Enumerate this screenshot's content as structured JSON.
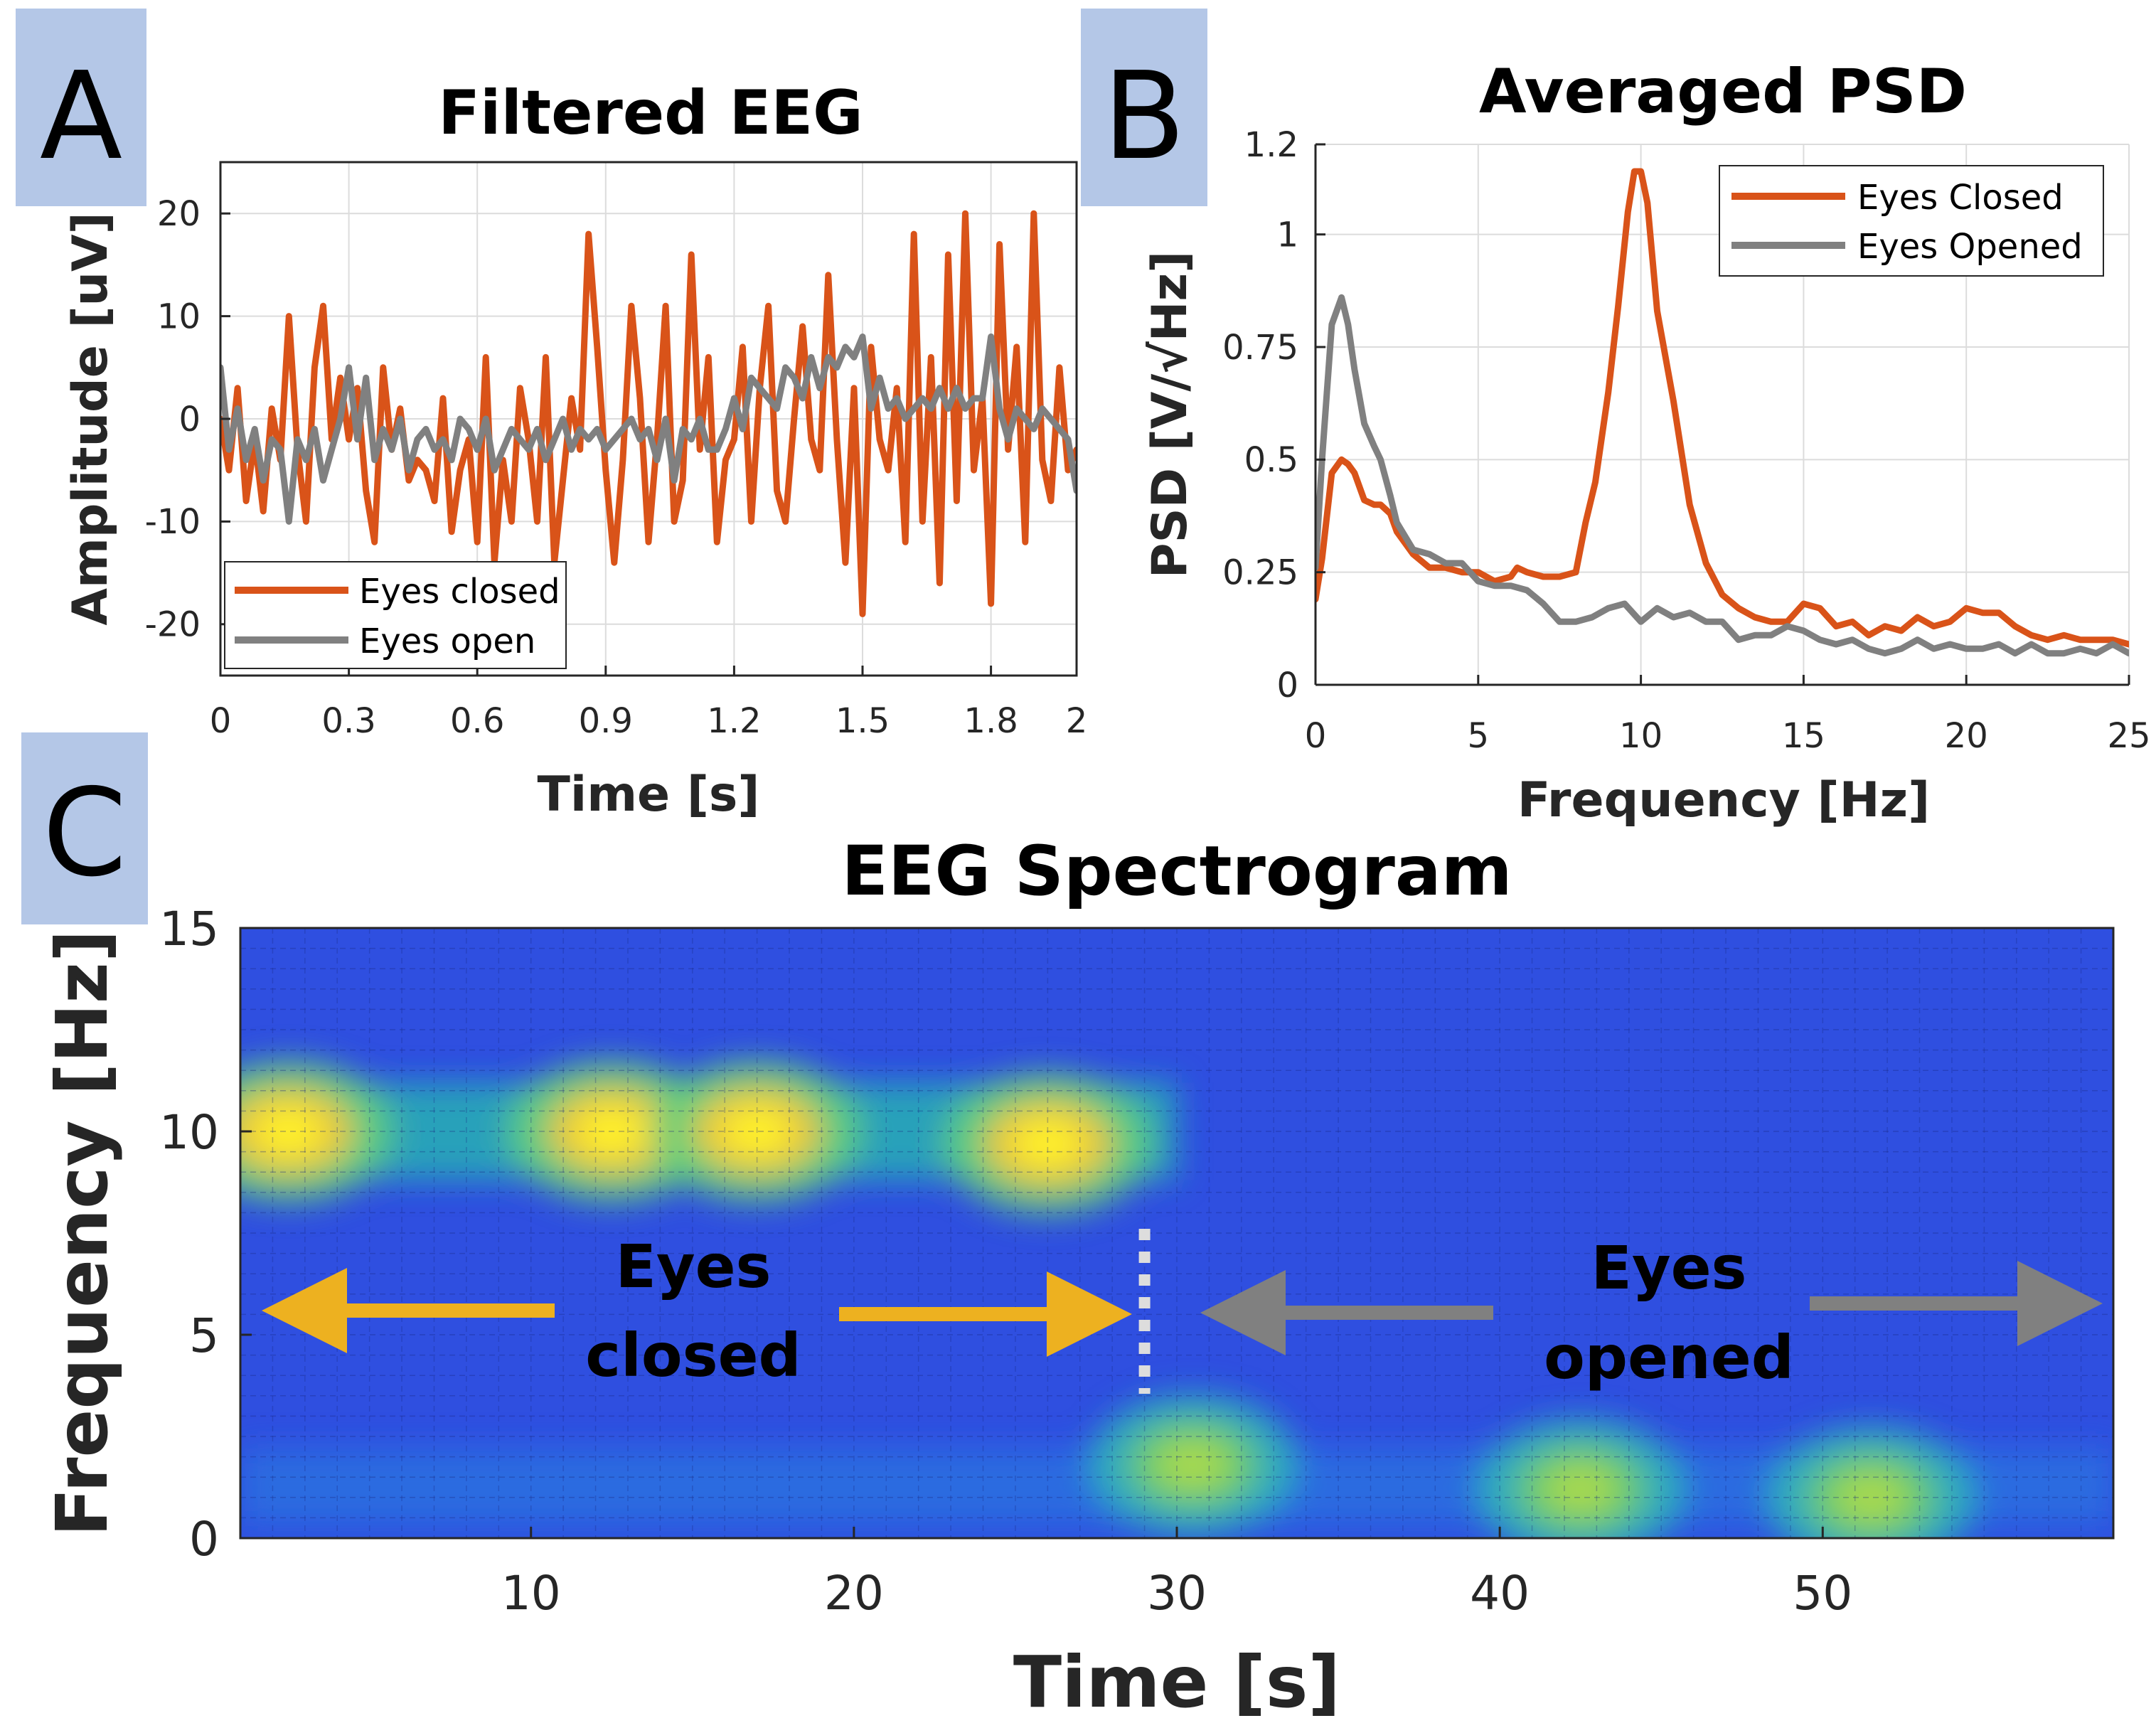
{
  "chart_data": [
    {
      "panel": "A",
      "type": "line",
      "title": "Filtered EEG",
      "xlabel": "Time [s]",
      "ylabel": "Amplitude [uV]",
      "xlim": [
        0,
        2
      ],
      "ylim": [
        -25,
        25
      ],
      "xticks": [
        0,
        0.3,
        0.6,
        0.9,
        1.2,
        1.5,
        1.8,
        2
      ],
      "xtick_labels": [
        "0",
        "0.3",
        "0.6",
        "0.9",
        "1.2",
        "1.5",
        "1.8",
        "2"
      ],
      "yticks": [
        -20,
        -10,
        0,
        10,
        20
      ],
      "ytick_labels": [
        "-20",
        "-10",
        "0",
        "10",
        "20"
      ],
      "grid": true,
      "legend_position": "bottom-left",
      "series": [
        {
          "name": "Eyes closed",
          "color": "#D95319",
          "x": [
            0,
            0.02,
            0.04,
            0.06,
            0.08,
            0.1,
            0.12,
            0.14,
            0.16,
            0.18,
            0.2,
            0.22,
            0.24,
            0.26,
            0.28,
            0.3,
            0.32,
            0.34,
            0.36,
            0.38,
            0.4,
            0.42,
            0.44,
            0.46,
            0.48,
            0.5,
            0.52,
            0.54,
            0.56,
            0.58,
            0.6,
            0.62,
            0.64,
            0.66,
            0.68,
            0.7,
            0.72,
            0.74,
            0.76,
            0.78,
            0.8,
            0.82,
            0.84,
            0.86,
            0.88,
            0.9,
            0.92,
            0.94,
            0.96,
            0.98,
            1.0,
            1.02,
            1.04,
            1.06,
            1.08,
            1.1,
            1.12,
            1.14,
            1.16,
            1.18,
            1.2,
            1.22,
            1.24,
            1.26,
            1.28,
            1.3,
            1.32,
            1.34,
            1.36,
            1.38,
            1.4,
            1.42,
            1.44,
            1.46,
            1.48,
            1.5,
            1.52,
            1.54,
            1.56,
            1.58,
            1.6,
            1.62,
            1.64,
            1.66,
            1.68,
            1.7,
            1.72,
            1.74,
            1.76,
            1.78,
            1.8,
            1.82,
            1.84,
            1.86,
            1.88,
            1.9,
            1.92,
            1.94,
            1.96,
            1.98,
            2.0
          ],
          "y": [
            0,
            -5,
            3,
            -8,
            -2,
            -9,
            1,
            -4,
            10,
            -3,
            -10,
            5,
            11,
            -2,
            4,
            -2,
            3,
            -7,
            -12,
            5,
            -3,
            1,
            -6,
            -4,
            -5,
            -8,
            2,
            -11,
            -5,
            -2,
            -12,
            6,
            -14,
            -4,
            -10,
            3,
            -2,
            -10,
            6,
            -14,
            -6,
            2,
            -3,
            18,
            7,
            -5,
            -14,
            -4,
            11,
            2,
            -12,
            -2,
            11,
            -10,
            -6,
            16,
            -3,
            6,
            -12,
            -4,
            -2,
            7,
            -10,
            3,
            11,
            -7,
            -10,
            0,
            9,
            -2,
            -5,
            14,
            -2,
            -14,
            3,
            -19,
            7,
            -2,
            -5,
            3,
            -12,
            18,
            -10,
            6,
            -16,
            16,
            -8,
            20,
            -5,
            2,
            -18,
            17,
            -3,
            7,
            -12,
            20,
            -4,
            -8,
            5,
            -5,
            -3
          ]
        },
        {
          "name": "Eyes open",
          "color": "#808080",
          "x": [
            0,
            0.02,
            0.04,
            0.06,
            0.08,
            0.1,
            0.12,
            0.14,
            0.16,
            0.18,
            0.2,
            0.22,
            0.24,
            0.26,
            0.28,
            0.3,
            0.32,
            0.34,
            0.36,
            0.38,
            0.4,
            0.42,
            0.44,
            0.46,
            0.48,
            0.5,
            0.52,
            0.54,
            0.56,
            0.58,
            0.6,
            0.62,
            0.64,
            0.66,
            0.68,
            0.7,
            0.72,
            0.74,
            0.76,
            0.78,
            0.8,
            0.82,
            0.84,
            0.86,
            0.88,
            0.9,
            0.92,
            0.94,
            0.96,
            0.98,
            1.0,
            1.02,
            1.04,
            1.06,
            1.08,
            1.1,
            1.12,
            1.14,
            1.16,
            1.18,
            1.2,
            1.22,
            1.24,
            1.26,
            1.28,
            1.3,
            1.32,
            1.34,
            1.36,
            1.38,
            1.4,
            1.42,
            1.44,
            1.46,
            1.48,
            1.5,
            1.52,
            1.54,
            1.56,
            1.58,
            1.6,
            1.62,
            1.64,
            1.66,
            1.68,
            1.7,
            1.72,
            1.74,
            1.76,
            1.78,
            1.8,
            1.82,
            1.84,
            1.86,
            1.88,
            1.9,
            1.92,
            1.94,
            1.96,
            1.98,
            2.0
          ],
          "y": [
            5,
            -3,
            1,
            -4,
            -1,
            -6,
            -2,
            -3,
            -10,
            -2,
            -4,
            -1,
            -6,
            -3,
            0,
            5,
            -2,
            4,
            -4,
            -1,
            -3,
            0,
            -5,
            -2,
            -1,
            -3,
            -2,
            -4,
            0,
            -1,
            -3,
            0,
            -5,
            -3,
            -1,
            -2,
            -3,
            -1,
            -4,
            -2,
            0,
            -3,
            -1,
            -2,
            -1,
            -3,
            -2,
            -1,
            0,
            -2,
            -1,
            -4,
            0,
            -6,
            -1,
            -2,
            0,
            -3,
            -3,
            -1,
            2,
            -1,
            4,
            3,
            2,
            1,
            5,
            4,
            2,
            6,
            3,
            6,
            5,
            7,
            6,
            8,
            1,
            4,
            1,
            2,
            0,
            1,
            2,
            1,
            3,
            1,
            3,
            1,
            2,
            2,
            8,
            1,
            -2,
            1,
            0,
            -1,
            1,
            0,
            -1,
            -2,
            -7
          ]
        }
      ]
    },
    {
      "panel": "B",
      "type": "line",
      "title": "Averaged PSD",
      "xlabel": "Frequency [Hz]",
      "ylabel": "PSD [V/√Hz]",
      "xlim": [
        0,
        25
      ],
      "ylim": [
        0,
        1.2
      ],
      "xticks": [
        0,
        5,
        10,
        15,
        20,
        25
      ],
      "xtick_labels": [
        "0",
        "5",
        "10",
        "15",
        "20",
        "25"
      ],
      "yticks": [
        0,
        0.25,
        0.5,
        0.75,
        1,
        1.2
      ],
      "ytick_labels": [
        "0",
        "0.25",
        "0.5",
        "0.75",
        "1",
        "1.2"
      ],
      "grid": true,
      "legend_position": "top-right",
      "series": [
        {
          "name": "Eyes Closed",
          "color": "#D95319",
          "x": [
            0,
            0.2,
            0.5,
            0.8,
            1,
            1.2,
            1.5,
            1.8,
            2,
            2.3,
            2.5,
            3,
            3.5,
            4,
            4.5,
            5,
            5.5,
            6,
            6.2,
            6.5,
            7,
            7.5,
            8,
            8.3,
            8.6,
            9,
            9.3,
            9.6,
            9.8,
            10,
            10.2,
            10.5,
            11,
            11.5,
            12,
            12.5,
            13,
            13.5,
            14,
            14.5,
            15,
            15.5,
            16,
            16.5,
            17,
            17.5,
            18,
            18.5,
            19,
            19.5,
            20,
            20.5,
            21,
            21.5,
            22,
            22.5,
            23,
            23.5,
            24,
            24.5,
            25
          ],
          "y": [
            0.19,
            0.28,
            0.47,
            0.5,
            0.49,
            0.47,
            0.41,
            0.4,
            0.4,
            0.38,
            0.34,
            0.29,
            0.26,
            0.26,
            0.25,
            0.25,
            0.23,
            0.24,
            0.26,
            0.25,
            0.24,
            0.24,
            0.25,
            0.36,
            0.45,
            0.65,
            0.84,
            1.05,
            1.14,
            1.14,
            1.07,
            0.83,
            0.63,
            0.4,
            0.27,
            0.2,
            0.17,
            0.15,
            0.14,
            0.14,
            0.18,
            0.17,
            0.13,
            0.14,
            0.11,
            0.13,
            0.12,
            0.15,
            0.13,
            0.14,
            0.17,
            0.16,
            0.16,
            0.13,
            0.11,
            0.1,
            0.11,
            0.1,
            0.1,
            0.1,
            0.09
          ]
        },
        {
          "name": "Eyes Opened",
          "color": "#808080",
          "x": [
            0,
            0.2,
            0.5,
            0.8,
            1,
            1.2,
            1.5,
            1.8,
            2,
            2.3,
            2.5,
            3,
            3.5,
            4,
            4.5,
            5,
            5.5,
            6,
            6.5,
            7,
            7.5,
            8,
            8.5,
            9,
            9.5,
            10,
            10.5,
            11,
            11.5,
            12,
            12.5,
            13,
            13.5,
            14,
            14.5,
            15,
            15.5,
            16,
            16.5,
            17,
            17.5,
            18,
            18.5,
            19,
            19.5,
            20,
            20.5,
            21,
            21.5,
            22,
            22.5,
            23,
            23.5,
            24,
            24.5,
            25
          ],
          "y": [
            0.26,
            0.5,
            0.8,
            0.86,
            0.8,
            0.7,
            0.58,
            0.53,
            0.5,
            0.42,
            0.36,
            0.3,
            0.29,
            0.27,
            0.27,
            0.23,
            0.22,
            0.22,
            0.21,
            0.18,
            0.14,
            0.14,
            0.15,
            0.17,
            0.18,
            0.14,
            0.17,
            0.15,
            0.16,
            0.14,
            0.14,
            0.1,
            0.11,
            0.11,
            0.13,
            0.12,
            0.1,
            0.09,
            0.1,
            0.08,
            0.07,
            0.08,
            0.1,
            0.08,
            0.09,
            0.08,
            0.08,
            0.09,
            0.07,
            0.09,
            0.07,
            0.07,
            0.08,
            0.07,
            0.09,
            0.07
          ]
        }
      ]
    },
    {
      "panel": "C",
      "type": "heatmap",
      "title": "EEG Spectrogram",
      "xlabel": "Time [s]",
      "ylabel": "Frequency [Hz]",
      "xlim": [
        1,
        59
      ],
      "ylim": [
        0,
        15
      ],
      "xticks": [
        10,
        20,
        30,
        40,
        50
      ],
      "xtick_labels": [
        "10",
        "20",
        "30",
        "40",
        "50"
      ],
      "yticks": [
        0,
        5,
        10,
        15
      ],
      "ytick_labels": [
        "0",
        "5",
        "10",
        "15"
      ],
      "grid": true,
      "colormap": "parula",
      "hotspots": [
        {
          "t": 2.5,
          "f": 10,
          "intensity": 0.95
        },
        {
          "t": 12.5,
          "f": 10,
          "intensity": 1.0
        },
        {
          "t": 17,
          "f": 10,
          "intensity": 0.85
        },
        {
          "t": 26,
          "f": 9.7,
          "intensity": 0.85
        },
        {
          "t": 30.5,
          "f": 1.8,
          "intensity": 0.55
        },
        {
          "t": 42.5,
          "f": 1.2,
          "intensity": 0.45
        },
        {
          "t": 51.5,
          "f": 1.0,
          "intensity": 0.5
        }
      ],
      "transition_time": 29,
      "annotations": [
        {
          "lines": [
            "Eyes",
            "closed"
          ],
          "color": "#000000"
        },
        {
          "lines": [
            "Eyes",
            "opened"
          ],
          "color": "#000000"
        }
      ],
      "arrow_colors": {
        "closed": "#EDB120",
        "opened": "#808080"
      }
    }
  ],
  "panel_labels": [
    "A",
    "B",
    "C"
  ],
  "panel_label_bg": "#B4C7E7"
}
